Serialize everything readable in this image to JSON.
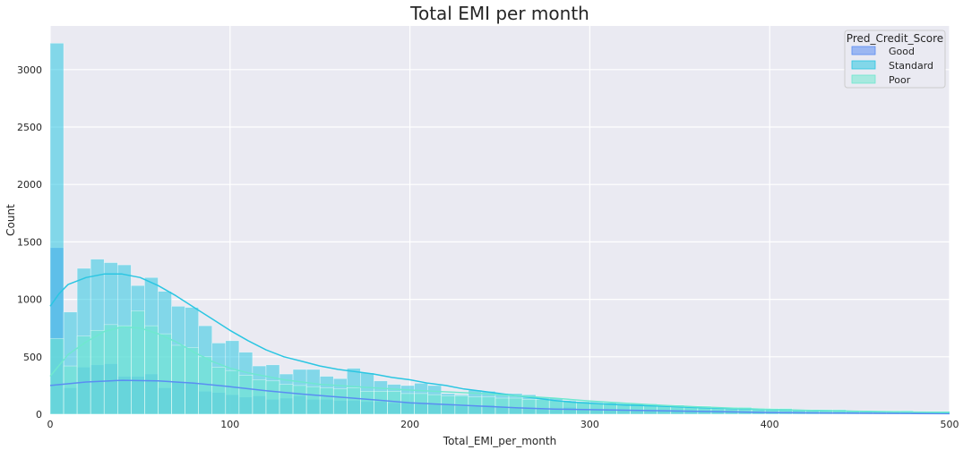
{
  "chart_data": {
    "type": "histogram",
    "title": "Total EMI per month",
    "xlabel": "Total_EMI_per_month",
    "ylabel": "Count",
    "xlim": [
      0,
      500
    ],
    "ylim": [
      0,
      3380
    ],
    "xticks": [
      0,
      100,
      200,
      300,
      400,
      500
    ],
    "yticks": [
      0,
      500,
      1000,
      1500,
      2000,
      2500,
      3000
    ],
    "grid": true,
    "bin_width": 7.5,
    "legend": {
      "title": "Pred_Credit_Score",
      "placement": "top-right"
    },
    "series": [
      {
        "name": "Good",
        "color": "#5a8df2",
        "values": [
          1450,
          230,
          410,
          430,
          440,
          330,
          330,
          350,
          230,
          280,
          270,
          200,
          190,
          170,
          150,
          160,
          130,
          140,
          160,
          130,
          130,
          120,
          120,
          110,
          110,
          100,
          100,
          90,
          90,
          90,
          70,
          70,
          80,
          60,
          60,
          60,
          50,
          50,
          60,
          40,
          40,
          40,
          40,
          40,
          30,
          30,
          30,
          30,
          30,
          30,
          25,
          25,
          20,
          20,
          20,
          20,
          20,
          15,
          15,
          15,
          15,
          12,
          12,
          12,
          10,
          10,
          10
        ],
        "kde": [
          [
            0,
            250
          ],
          [
            20,
            280
          ],
          [
            40,
            295
          ],
          [
            60,
            290
          ],
          [
            80,
            270
          ],
          [
            100,
            240
          ],
          [
            120,
            205
          ],
          [
            140,
            175
          ],
          [
            160,
            150
          ],
          [
            180,
            125
          ],
          [
            200,
            100
          ],
          [
            220,
            85
          ],
          [
            240,
            70
          ],
          [
            260,
            55
          ],
          [
            280,
            45
          ],
          [
            300,
            40
          ],
          [
            320,
            35
          ],
          [
            340,
            30
          ],
          [
            360,
            25
          ],
          [
            380,
            20
          ],
          [
            400,
            15
          ],
          [
            420,
            12
          ],
          [
            440,
            10
          ],
          [
            460,
            8
          ],
          [
            480,
            6
          ],
          [
            500,
            5
          ]
        ]
      },
      {
        "name": "Standard",
        "color": "#2bc6e2",
        "values": [
          3230,
          890,
          1270,
          1350,
          1320,
          1300,
          1120,
          1190,
          1070,
          940,
          930,
          770,
          620,
          640,
          540,
          420,
          430,
          350,
          390,
          390,
          330,
          310,
          400,
          360,
          290,
          260,
          250,
          270,
          250,
          180,
          170,
          210,
          200,
          180,
          180,
          170,
          150,
          140,
          120,
          110,
          110,
          100,
          100,
          90,
          90,
          80,
          80,
          70,
          70,
          60,
          60,
          60,
          50,
          50,
          50,
          40,
          40,
          40,
          40,
          30,
          30,
          30,
          30,
          30,
          20,
          20,
          20
        ],
        "kde": [
          [
            0,
            940
          ],
          [
            5,
            1050
          ],
          [
            10,
            1130
          ],
          [
            20,
            1190
          ],
          [
            30,
            1220
          ],
          [
            40,
            1220
          ],
          [
            50,
            1190
          ],
          [
            60,
            1120
          ],
          [
            70,
            1030
          ],
          [
            80,
            930
          ],
          [
            90,
            830
          ],
          [
            100,
            730
          ],
          [
            110,
            640
          ],
          [
            120,
            560
          ],
          [
            130,
            500
          ],
          [
            140,
            460
          ],
          [
            150,
            420
          ],
          [
            160,
            390
          ],
          [
            170,
            370
          ],
          [
            180,
            350
          ],
          [
            190,
            320
          ],
          [
            200,
            300
          ],
          [
            210,
            270
          ],
          [
            220,
            250
          ],
          [
            230,
            220
          ],
          [
            240,
            200
          ],
          [
            250,
            180
          ],
          [
            260,
            160
          ],
          [
            270,
            140
          ],
          [
            280,
            120
          ],
          [
            290,
            105
          ],
          [
            300,
            95
          ],
          [
            320,
            80
          ],
          [
            340,
            70
          ],
          [
            360,
            58
          ],
          [
            380,
            48
          ],
          [
            400,
            40
          ],
          [
            420,
            33
          ],
          [
            440,
            27
          ],
          [
            460,
            22
          ],
          [
            480,
            18
          ],
          [
            500,
            15
          ]
        ]
      },
      {
        "name": "Poor",
        "color": "#6fe8cf",
        "values": [
          660,
          420,
          680,
          730,
          780,
          770,
          900,
          770,
          700,
          600,
          580,
          500,
          410,
          380,
          340,
          300,
          290,
          260,
          250,
          240,
          230,
          220,
          230,
          200,
          200,
          200,
          180,
          180,
          170,
          160,
          160,
          150,
          150,
          140,
          140,
          130,
          130,
          120,
          110,
          110,
          100,
          100,
          90,
          90,
          80,
          80,
          80,
          70,
          70,
          60,
          60,
          60,
          50,
          50,
          50,
          40,
          40,
          40,
          40,
          30,
          30,
          30,
          30,
          30,
          25,
          25,
          25
        ],
        "kde": [
          [
            0,
            330
          ],
          [
            10,
            520
          ],
          [
            20,
            630
          ],
          [
            30,
            720
          ],
          [
            40,
            760
          ],
          [
            50,
            750
          ],
          [
            60,
            700
          ],
          [
            70,
            630
          ],
          [
            80,
            540
          ],
          [
            90,
            460
          ],
          [
            100,
            400
          ],
          [
            110,
            360
          ],
          [
            120,
            330
          ],
          [
            130,
            300
          ],
          [
            140,
            280
          ],
          [
            150,
            260
          ],
          [
            160,
            250
          ],
          [
            170,
            240
          ],
          [
            180,
            230
          ],
          [
            190,
            220
          ],
          [
            200,
            210
          ],
          [
            220,
            195
          ],
          [
            240,
            180
          ],
          [
            260,
            160
          ],
          [
            280,
            140
          ],
          [
            300,
            115
          ],
          [
            320,
            95
          ],
          [
            340,
            78
          ],
          [
            360,
            64
          ],
          [
            380,
            52
          ],
          [
            400,
            42
          ],
          [
            420,
            34
          ],
          [
            440,
            28
          ],
          [
            460,
            23
          ],
          [
            480,
            19
          ],
          [
            500,
            16
          ]
        ]
      }
    ]
  }
}
